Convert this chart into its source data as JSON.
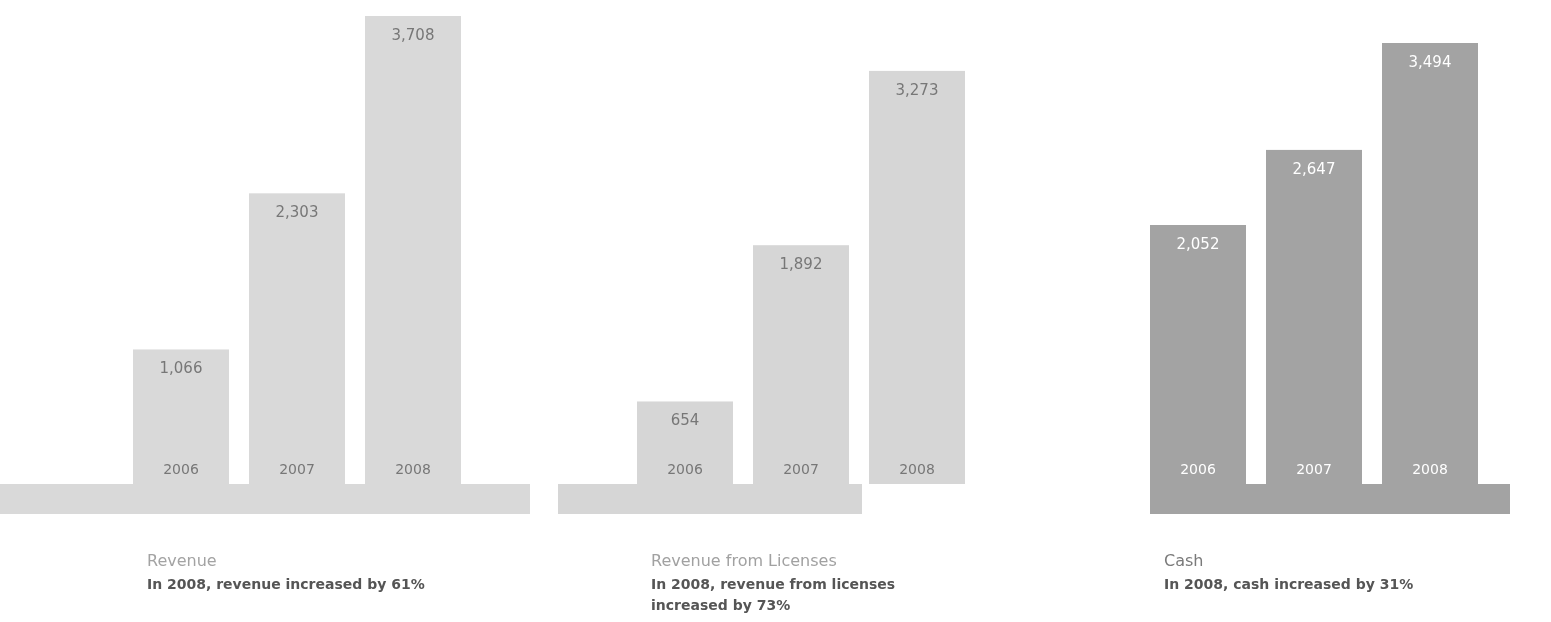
{
  "chart_data": [
    {
      "type": "bar",
      "title": "Revenue",
      "subtitle": "In 2008, revenue increased by 61%",
      "categories": [
        "2006",
        "2007",
        "2008"
      ],
      "values": [
        1066,
        2303,
        3708
      ],
      "value_labels": [
        "1,066",
        "2,303",
        "3,708"
      ],
      "color": "#d9d9d9"
    },
    {
      "type": "bar",
      "title": "Revenue from Licenses",
      "subtitle": "In 2008, revenue from licenses increased by 73%",
      "categories": [
        "2006",
        "2007",
        "2008"
      ],
      "values": [
        654,
        1892,
        3273
      ],
      "value_labels": [
        "654",
        "1,892",
        "3,273"
      ],
      "color": "#d6d6d6"
    },
    {
      "type": "bar",
      "title": "Cash",
      "subtitle": "In 2008, cash increased by 31%",
      "categories": [
        "2006",
        "2007",
        "2008"
      ],
      "values": [
        2052,
        2647,
        3494
      ],
      "value_labels": [
        "2,052",
        "2,647",
        "3,494"
      ],
      "color": "#a3a3a3"
    }
  ]
}
